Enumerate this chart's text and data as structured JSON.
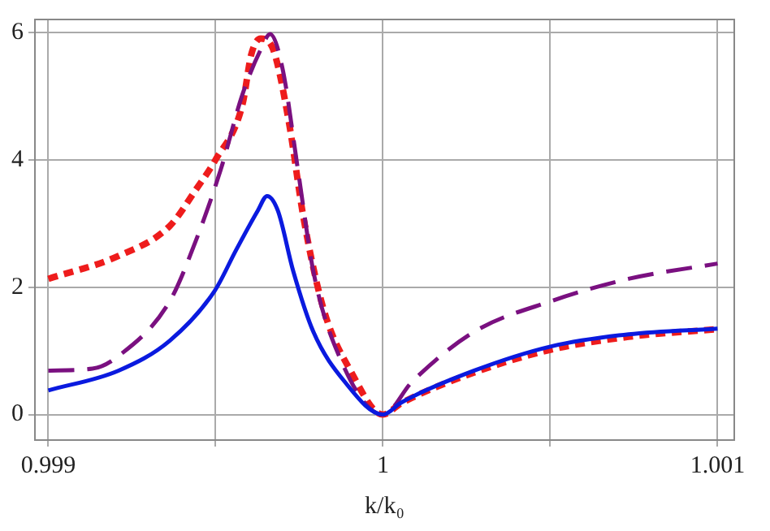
{
  "chart_data": {
    "type": "line",
    "xlabel": "k/k₀",
    "xlim": [
      0.99896,
      1.00105
    ],
    "xticks": [
      0.999,
      {
        "value": 0.9995,
        "label": null
      },
      1,
      {
        "value": 1.0005,
        "label": null
      },
      1.001
    ],
    "ylim": [
      -0.4,
      6.2
    ],
    "yticks": [
      0,
      2,
      4,
      6
    ],
    "grid": true,
    "legend": false,
    "marker": "none",
    "series": [
      {
        "color": "#0a1adf",
        "line_style": "solid",
        "x": [
          0.999,
          0.99921,
          0.999363,
          0.999497,
          0.999561,
          0.999626,
          0.999654,
          0.999686,
          0.999732,
          0.999792,
          0.999885,
          1,
          1.000055,
          1.000273,
          1.000503,
          1.000734,
          1.001
        ],
        "values": [
          0.38,
          0.69,
          1.16,
          1.94,
          2.58,
          3.2,
          3.43,
          3.2,
          2.25,
          1.3,
          0.52,
          0,
          0.19,
          0.69,
          1.07,
          1.26,
          1.35
        ]
      },
      {
        "color": "#7a1080",
        "line_style": "dashed",
        "x": [
          0.999,
          0.999132,
          0.99921,
          0.999363,
          0.999441,
          0.999515,
          0.99958,
          0.999635,
          0.999663,
          0.9997,
          0.999746,
          0.999792,
          0.999857,
          1,
          1.000088,
          1.000273,
          1.000503,
          1.000734,
          1.001
        ],
        "values": [
          0.69,
          0.72,
          0.92,
          1.78,
          2.73,
          3.84,
          5.02,
          5.73,
          5.97,
          5.43,
          3.84,
          2.25,
          1.07,
          0,
          0.52,
          1.3,
          1.78,
          2.13,
          2.37
        ]
      },
      {
        "color": "#ee1c1c",
        "line_style": "dotted",
        "x": [
          0.999,
          0.99921,
          0.999363,
          0.999441,
          0.9995,
          0.99958,
          0.999607,
          0.999635,
          0.999672,
          0.999718,
          0.999764,
          0.999824,
          0.999903,
          1,
          1.000055,
          1.000273,
          1.000503,
          1.000734,
          1.001
        ],
        "values": [
          2.13,
          2.49,
          2.96,
          3.53,
          4.0,
          4.86,
          5.66,
          5.9,
          5.73,
          4.62,
          3.05,
          1.63,
          0.69,
          0,
          0.18,
          0.66,
          1.02,
          1.22,
          1.34
        ]
      }
    ]
  }
}
